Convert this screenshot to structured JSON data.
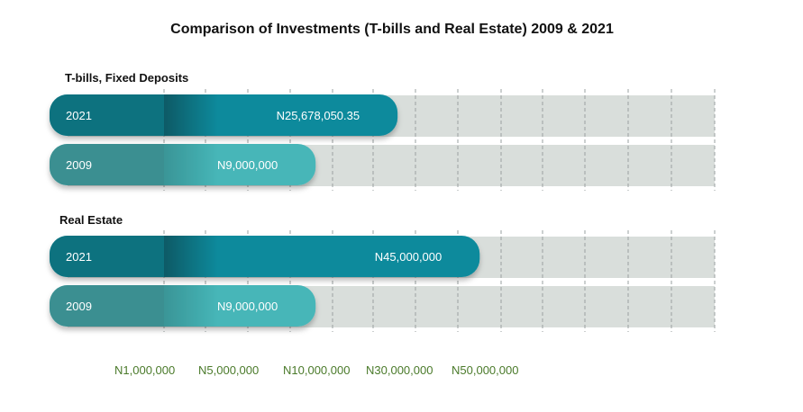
{
  "chart_data": {
    "type": "bar",
    "title": "Comparison of Investments (T-bills and Real Estate) 2009 & 2021",
    "orientation": "horizontal",
    "scale": "non-linear (custom tick spacing)",
    "x_ticks": [
      {
        "value": 1000000,
        "label": "N1,000,000"
      },
      {
        "value": 5000000,
        "label": "N5,000,000"
      },
      {
        "value": 10000000,
        "label": "N10,000,000"
      },
      {
        "value": 30000000,
        "label": "N30,000,000"
      },
      {
        "value": 50000000,
        "label": "N50,000,000"
      }
    ],
    "grid": "vertical dashed",
    "groups": [
      {
        "name": "T-bills, Fixed Deposits",
        "bars": [
          {
            "year": "2021",
            "value": 25678050.35,
            "label": "N25,678,050.35",
            "color": "#0a8a9c"
          },
          {
            "year": "2009",
            "value": 9000000,
            "label": "N9,000,000",
            "color": "#3aa9ad"
          }
        ]
      },
      {
        "name": "Real Estate",
        "bars": [
          {
            "year": "2021",
            "value": 45000000,
            "label": "N45,000,000",
            "color": "#0a8a9c"
          },
          {
            "year": "2009",
            "value": 9000000,
            "label": "N9,000,000",
            "color": "#3aa9ad"
          }
        ]
      }
    ],
    "colors": {
      "track": "#d9dedb",
      "bar_2021": "#0a8a9c",
      "bar_2021_cap": "#08727f",
      "bar_2009": "#46b6b8",
      "bar_2009_cap": "#3a8f91",
      "tick_text": "#4a7a2a"
    }
  }
}
